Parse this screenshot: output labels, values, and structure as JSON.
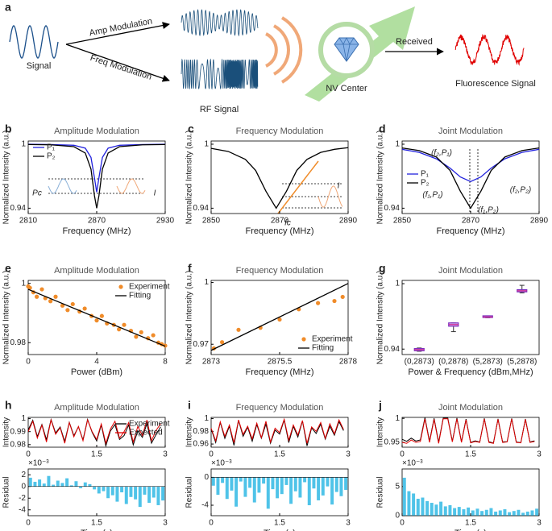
{
  "diagram": {
    "label": "a",
    "signal": "Signal",
    "amp": "Amp Modulation",
    "freq": "Freq Modulation",
    "rf": "RF Signal",
    "nv": "NV Center",
    "received": "Received",
    "fluorescence": "Fluorescence Signal"
  },
  "chart_data": [
    {
      "type": "line",
      "label": "b",
      "title": "Amplitude Modulation",
      "xlabel": "Frequency (MHz)",
      "ylabel": "Normalized Intensity (a.u.)",
      "xlim": [
        2810,
        2930
      ],
      "ylim": [
        0.935,
        1.003
      ],
      "xticks": [
        2810,
        2870,
        2930
      ],
      "yticks": [
        0.94,
        1
      ],
      "legend": "upper left",
      "x": [
        2810,
        2830,
        2850,
        2860,
        2865,
        2868,
        2870,
        2872,
        2875,
        2880,
        2890,
        2910,
        2930
      ],
      "series": [
        {
          "name": "P₁",
          "color": "#2222dd",
          "values": [
            1.0,
            0.9997,
            0.999,
            0.9963,
            0.9876,
            0.9688,
            0.955,
            0.9688,
            0.9876,
            0.9963,
            0.999,
            0.9997,
            1.0
          ]
        },
        {
          "name": "P₂",
          "color": "#000000",
          "values": [
            0.9997,
            0.9994,
            0.9977,
            0.9917,
            0.9766,
            0.952,
            0.94,
            0.952,
            0.9766,
            0.9917,
            0.9977,
            0.9994,
            0.9997
          ]
        }
      ],
      "annotations": [
        {
          "text": "Pc",
          "color": "#3b6fb6"
        },
        {
          "text": "I",
          "color": "#f08c2a"
        }
      ]
    },
    {
      "type": "line",
      "label": "c",
      "title": "Frequency Modulation",
      "xlabel": "Frequency (MHz)",
      "ylabel": "Normalized Intensity (a.u.)",
      "xlim": [
        2850,
        2890
      ],
      "ylim": [
        0.935,
        1.003
      ],
      "xticks": [
        2850,
        2870,
        2890
      ],
      "yticks": [
        0.94,
        1
      ],
      "x": [
        2850,
        2855,
        2860,
        2863,
        2866,
        2869,
        2872,
        2875,
        2878,
        2882,
        2886,
        2890
      ],
      "series": [
        {
          "color": "#000000",
          "values": [
            0.9961,
            0.9932,
            0.9858,
            0.9754,
            0.9559,
            0.94,
            0.9559,
            0.9754,
            0.9858,
            0.9923,
            0.9952,
            0.9968
          ]
        }
      ],
      "annotations": [
        {
          "text": "fc",
          "color": "#3b6fb6"
        },
        {
          "text": "I",
          "color": "#f08c2a"
        }
      ]
    },
    {
      "type": "line",
      "label": "d",
      "title": "Joint Modulation",
      "xlabel": "Frequency (MHz)",
      "ylabel": "Normalized Intensity (a.u.)",
      "xlim": [
        2850,
        2890
      ],
      "ylim": [
        0.935,
        1.003
      ],
      "xticks": [
        2850,
        2870,
        2890
      ],
      "yticks": [
        0.94,
        1
      ],
      "legend": "center left",
      "x": [
        2850,
        2855,
        2860,
        2864,
        2867,
        2870,
        2873,
        2876,
        2880,
        2885,
        2890
      ],
      "series": [
        {
          "name": "P₁",
          "color": "#2222dd",
          "values": [
            0.9952,
            0.9923,
            0.9863,
            0.9776,
            0.9693,
            0.965,
            0.9693,
            0.9776,
            0.9863,
            0.9923,
            0.9952
          ]
        },
        {
          "name": "P₂",
          "color": "#000000",
          "values": [
            0.9965,
            0.994,
            0.988,
            0.9754,
            0.9559,
            0.94,
            0.9559,
            0.9754,
            0.988,
            0.994,
            0.9965
          ]
        }
      ],
      "annotations": [
        {
          "text": "(f₂,P₁)",
          "color": "#1a3a8a"
        },
        {
          "text": "(f₁,P₁)",
          "color": "#e8833a"
        },
        {
          "text": "(f₂,P₂)",
          "color": "#1a3a8a"
        },
        {
          "text": "(f₁,P₂)",
          "color": "#e8833a"
        }
      ]
    },
    {
      "type": "scatter",
      "label": "e",
      "title": "Amplitude Modulation",
      "xlabel": "Power (dBm)",
      "ylabel": "Normalized Intensity (a.u.)",
      "xlim": [
        0,
        8
      ],
      "ylim": [
        0.976,
        1.001
      ],
      "xticks": [
        0,
        4,
        8
      ],
      "yticks": [
        0.98,
        1
      ],
      "legend": "upper right",
      "series": [
        {
          "name": "Experiment",
          "type": "scatter",
          "color": "#f08c2a",
          "x": [
            0,
            0.1,
            0.3,
            0.5,
            0.8,
            1.0,
            1.3,
            1.6,
            2.0,
            2.3,
            2.6,
            3.0,
            3.3,
            3.7,
            4.0,
            4.3,
            4.6,
            5.0,
            5.3,
            5.6,
            6.0,
            6.3,
            6.6,
            7.0,
            7.3,
            7.6,
            7.8,
            8.0
          ],
          "values": [
            0.999,
            0.9985,
            0.997,
            0.9955,
            0.998,
            0.995,
            0.994,
            0.9955,
            0.9925,
            0.991,
            0.993,
            0.9905,
            0.9915,
            0.989,
            0.9875,
            0.989,
            0.9865,
            0.986,
            0.9845,
            0.986,
            0.984,
            0.982,
            0.9835,
            0.9815,
            0.9825,
            0.98,
            0.9795,
            0.979
          ]
        },
        {
          "name": "Fitting",
          "type": "line",
          "color": "#000000",
          "x": [
            0,
            8
          ],
          "values": [
            0.998,
            0.9788
          ]
        }
      ]
    },
    {
      "type": "scatter",
      "label": "f",
      "title": "Frequency Modulation",
      "xlabel": "Frequency (MHz)",
      "ylabel": "Normalized Intensity (a.u.)",
      "xlim": [
        2873,
        2878
      ],
      "ylim": [
        0.965,
        1.001
      ],
      "xticks": [
        2873,
        2875.5,
        2878
      ],
      "yticks": [
        0.97,
        1
      ],
      "legend": "lower right",
      "series": [
        {
          "name": "Experiment",
          "type": "scatter",
          "color": "#f08c2a",
          "x": [
            2873.1,
            2873.4,
            2874,
            2874.8,
            2875.5,
            2876.2,
            2876.9,
            2877.5,
            2877.8
          ],
          "values": [
            0.968,
            0.971,
            0.977,
            0.978,
            0.982,
            0.987,
            0.99,
            0.991,
            0.993
          ]
        },
        {
          "name": "Fitting",
          "type": "line",
          "color": "#000000",
          "x": [
            2873,
            2878
          ],
          "values": [
            0.967,
            0.9995
          ]
        }
      ]
    },
    {
      "type": "box",
      "label": "g",
      "title": "Joint Modulation",
      "xlabel": "Power & Frequency (dBm,MHz)",
      "ylabel": "Normalized Intensity (a.u.)",
      "ylim": [
        0.935,
        1.003
      ],
      "yticks": [
        0.94,
        1
      ],
      "color": "#7b2fbf",
      "categories": [
        "(0,2873)",
        "(0,2878)",
        "(5,2873)",
        "(5,2878)"
      ],
      "values": [
        0.9395,
        0.9625,
        0.9695,
        0.9935
      ],
      "q1": [
        0.9385,
        0.961,
        0.969,
        0.9925
      ],
      "q3": [
        0.9405,
        0.964,
        0.9705,
        0.9945
      ],
      "min": [
        0.938,
        0.956,
        0.9688,
        0.9915
      ],
      "max": [
        0.941,
        0.964,
        0.9705,
        0.9985
      ]
    },
    {
      "type": "line",
      "label": "h",
      "title": "Amplitude Modulation",
      "ylabel": "Intensity",
      "xlim": [
        0,
        3
      ],
      "ylim": [
        0.978,
        1.001
      ],
      "xticks": [
        0,
        1.5,
        3
      ],
      "yticks": [
        0.98,
        0.99,
        1
      ],
      "legend": "upper right",
      "x": [
        0,
        0.1,
        0.2,
        0.3,
        0.4,
        0.5,
        0.6,
        0.7,
        0.8,
        0.9,
        1.0,
        1.1,
        1.2,
        1.3,
        1.4,
        1.5,
        1.6,
        1.7,
        1.8,
        1.9,
        2.0,
        2.1,
        2.2,
        2.3,
        2.4,
        2.5,
        2.6,
        2.7,
        2.8,
        2.9
      ],
      "series": [
        {
          "name": "Experiment",
          "color": "#000000",
          "values": [
            0.9915,
            0.9988,
            0.9862,
            0.9955,
            0.9838,
            0.9993,
            0.989,
            0.9936,
            0.9824,
            0.9972,
            0.9869,
            0.9937,
            0.9837,
            0.9994,
            0.9895,
            0.9828,
            0.9952,
            0.979,
            0.9905,
            0.9954,
            0.984,
            0.987,
            0.9952,
            0.9798,
            0.9905,
            0.9856,
            0.9962,
            0.9811,
            0.9878,
            0.9936
          ]
        },
        {
          "name": "Expected",
          "color": "#e00000",
          "values": [
            0.99,
            0.998,
            0.985,
            0.995,
            0.982,
            0.999,
            0.988,
            0.993,
            0.981,
            0.997,
            0.986,
            0.994,
            0.983,
            0.999,
            0.99,
            0.984,
            0.996,
            0.981,
            0.992,
            0.998,
            0.985,
            0.99,
            0.997,
            0.982,
            0.994,
            0.987,
            0.999,
            0.983,
            0.991,
            0.996
          ]
        }
      ]
    },
    {
      "type": "bar",
      "xlabel": "Time (s)",
      "ylabel": "Residual",
      "multiplier": "×10⁻³",
      "xlim": [
        0,
        3
      ],
      "ylim": [
        -5,
        3
      ],
      "xticks": [
        0,
        1.5,
        3
      ],
      "yticks": [
        2,
        0,
        -2,
        -4
      ],
      "color": "#4fc3e8",
      "x": [
        0,
        0.1,
        0.2,
        0.3,
        0.4,
        0.5,
        0.6,
        0.7,
        0.8,
        0.9,
        1.0,
        1.1,
        1.2,
        1.3,
        1.4,
        1.5,
        1.6,
        1.7,
        1.8,
        1.9,
        2.0,
        2.1,
        2.2,
        2.3,
        2.4,
        2.5,
        2.6,
        2.7,
        2.8,
        2.9
      ],
      "series": [
        {
          "color": "#4fc3e8",
          "values": [
            1.5,
            0.8,
            1.2,
            0.5,
            1.8,
            0.3,
            1.0,
            0.6,
            1.4,
            0.2,
            0.9,
            -0.3,
            0.7,
            0.4,
            -0.5,
            -1.2,
            -0.8,
            -2.0,
            -1.5,
            -2.6,
            -1.0,
            -3.0,
            -1.8,
            -2.2,
            -3.5,
            -1.4,
            -2.8,
            -1.9,
            -3.2,
            -2.4
          ]
        }
      ]
    },
    {
      "type": "line",
      "label": "i",
      "title": "Frequency Modulation",
      "ylabel": "Intensity",
      "xlim": [
        0,
        3
      ],
      "ylim": [
        0.955,
        1.002
      ],
      "xticks": [
        0,
        1.5,
        3
      ],
      "yticks": [
        0.96,
        0.98,
        1
      ],
      "x": [
        0,
        0.1,
        0.2,
        0.3,
        0.4,
        0.5,
        0.6,
        0.7,
        0.8,
        0.9,
        1.0,
        1.1,
        1.2,
        1.3,
        1.4,
        1.5,
        1.6,
        1.7,
        1.8,
        1.9,
        2.0,
        2.1,
        2.2,
        2.3,
        2.4,
        2.5,
        2.6,
        2.7,
        2.8,
        2.9
      ],
      "series": [
        {
          "color": "#000000",
          "values": [
            0.9838,
            0.9625,
            0.9942,
            0.9689,
            0.9881,
            0.9578,
            0.9974,
            0.9722,
            0.9865,
            0.9644,
            0.9908,
            0.9691,
            0.9915,
            0.9613,
            0.982,
            0.9756,
            0.9979,
            0.9622,
            0.988,
            0.9711,
            0.9963,
            0.957,
            0.9854,
            0.9767,
            0.9914,
            0.9677,
            0.9881,
            0.9739,
            0.9953,
            0.9812
          ]
        },
        {
          "color": "#e00000",
          "values": [
            0.985,
            0.965,
            0.995,
            0.972,
            0.99,
            0.962,
            0.998,
            0.975,
            0.988,
            0.968,
            0.993,
            0.97,
            0.996,
            0.963,
            0.985,
            0.978,
            0.999,
            0.966,
            0.99,
            0.974,
            0.997,
            0.961,
            0.987,
            0.98,
            0.994,
            0.969,
            0.992,
            0.976,
            0.998,
            0.983
          ]
        }
      ]
    },
    {
      "type": "bar",
      "xlabel": "Time (s)",
      "ylabel": "Residual",
      "multiplier": "×10⁻³",
      "xlim": [
        0,
        3
      ],
      "ylim": [
        -5.5,
        1.2
      ],
      "xticks": [
        0,
        1.5,
        3
      ],
      "yticks": [
        0,
        -4
      ],
      "color": "#4fc3e8",
      "x": [
        0,
        0.1,
        0.2,
        0.3,
        0.4,
        0.5,
        0.6,
        0.7,
        0.8,
        0.9,
        1.0,
        1.1,
        1.2,
        1.3,
        1.4,
        1.5,
        1.6,
        1.7,
        1.8,
        1.9,
        2.0,
        2.1,
        2.2,
        2.3,
        2.4,
        2.5,
        2.6,
        2.7,
        2.8,
        2.9
      ],
      "series": [
        {
          "color": "#4fc3e8",
          "values": [
            -1.2,
            -2.5,
            -0.8,
            -3.1,
            -1.9,
            -4.2,
            -0.6,
            -2.8,
            -1.5,
            -3.6,
            -2.2,
            -0.9,
            -4.5,
            -1.7,
            -3.0,
            -2.4,
            -1.1,
            -3.8,
            -2.0,
            -2.9,
            -0.7,
            -4.0,
            -1.6,
            -3.3,
            -2.6,
            -1.3,
            -3.9,
            -2.1,
            -2.7,
            -1.8
          ]
        }
      ]
    },
    {
      "type": "line",
      "label": "j",
      "title": "Joint Modulation",
      "ylabel": "Intensity",
      "xlim": [
        0,
        3
      ],
      "ylim": [
        0.94,
        1.002
      ],
      "xticks": [
        0,
        1.5,
        3
      ],
      "yticks": [
        0.95,
        1
      ],
      "x": [
        0,
        0.1,
        0.2,
        0.3,
        0.4,
        0.5,
        0.6,
        0.7,
        0.8,
        0.9,
        1.0,
        1.1,
        1.2,
        1.3,
        1.4,
        1.5,
        1.6,
        1.7,
        1.8,
        1.9,
        2.0,
        2.1,
        2.2,
        2.3,
        2.4,
        2.5,
        2.6,
        2.7,
        2.8,
        2.9
      ],
      "series": [
        {
          "color": "#000000",
          "values": [
            0.9565,
            0.9522,
            0.9588,
            0.9529,
            0.9551,
            1.0015,
            0.9522,
            0.9999,
            0.9504,
            1.0006,
            1.0008,
            0.9523,
            1.0005,
            0.9511,
            0.9984,
            0.9499,
            0.9532,
            0.9508,
            1.0,
            0.9513,
            0.9487,
            0.9989,
            0.9511,
            0.9516,
            0.9998,
            0.951,
            0.9495,
            0.9987,
            0.9509,
            0.9532
          ]
        },
        {
          "color": "#e00000",
          "values": [
            0.95,
            0.948,
            0.955,
            0.95,
            0.952,
            0.999,
            0.95,
            0.998,
            0.948,
            0.999,
            0.999,
            0.951,
            0.999,
            0.95,
            0.997,
            0.949,
            0.952,
            0.95,
            0.999,
            0.95,
            0.948,
            0.998,
            0.95,
            0.951,
            0.999,
            0.95,
            0.949,
            0.998,
            0.95,
            0.952
          ]
        }
      ]
    },
    {
      "type": "bar",
      "xlabel": "Time (s)",
      "ylabel": "Residual",
      "multiplier": "×10⁻³",
      "xlim": [
        0,
        3
      ],
      "ylim": [
        0,
        8
      ],
      "xticks": [
        0,
        1.5,
        3
      ],
      "yticks": [
        0,
        5
      ],
      "color": "#4fc3e8",
      "x": [
        0,
        0.1,
        0.2,
        0.3,
        0.4,
        0.5,
        0.6,
        0.7,
        0.8,
        0.9,
        1.0,
        1.1,
        1.2,
        1.3,
        1.4,
        1.5,
        1.6,
        1.7,
        1.8,
        1.9,
        2.0,
        2.1,
        2.2,
        2.3,
        2.4,
        2.5,
        2.6,
        2.7,
        2.8,
        2.9
      ],
      "series": [
        {
          "color": "#4fc3e8",
          "values": [
            6.5,
            4.2,
            3.8,
            2.9,
            3.1,
            2.5,
            2.2,
            1.9,
            2.4,
            1.6,
            1.8,
            1.3,
            1.5,
            1.1,
            1.4,
            0.9,
            1.2,
            0.8,
            1.0,
            1.3,
            0.7,
            0.9,
            1.1,
            0.6,
            0.8,
            1.0,
            0.5,
            0.7,
            0.9,
            1.2
          ]
        }
      ]
    }
  ]
}
